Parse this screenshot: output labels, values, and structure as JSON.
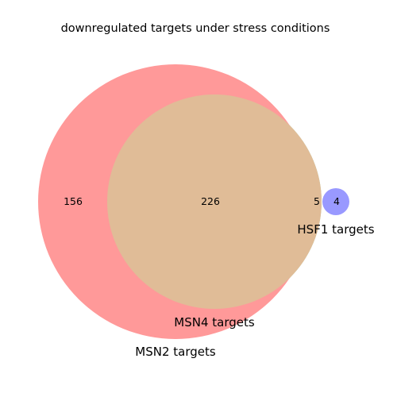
{
  "title": "downregulated targets under stress conditions",
  "sets": {
    "msn2": {
      "label": "MSN2 targets",
      "color": "#ff9999"
    },
    "msn4": {
      "label": "MSN4 targets",
      "color": "#99cc99"
    },
    "hsf1": {
      "label": "HSF1 targets",
      "color": "#9999ff"
    },
    "overlap_color": "#e0bc97"
  },
  "counts": {
    "msn2_only": "156",
    "msn2_msn4": "226",
    "msn4_only": "5",
    "hsf1_only": "4"
  }
}
